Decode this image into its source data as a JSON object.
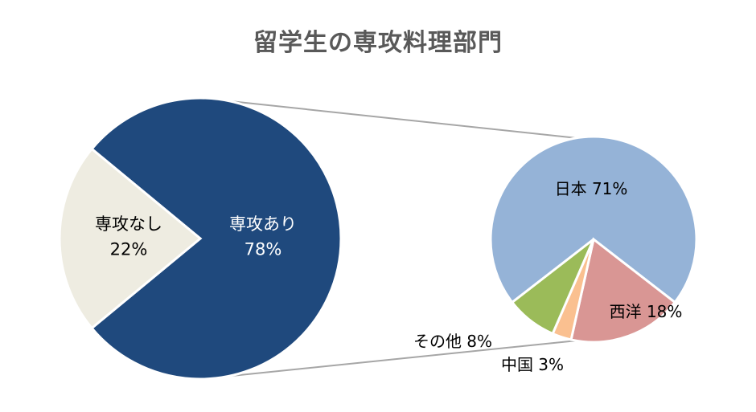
{
  "chart_data": {
    "type": "pie",
    "title": "留学生の専攻料理部門",
    "main_pie": {
      "slices": [
        {
          "label": "専攻あり",
          "value": 78,
          "value_label": "78%",
          "color": "#1f497d"
        },
        {
          "label": "専攻なし",
          "value": 22,
          "value_label": "22%",
          "color": "#eeece1"
        }
      ]
    },
    "detail_pie": {
      "breakdown_of": "専攻あり",
      "slices": [
        {
          "label": "日本",
          "value": 71,
          "value_label": "71%",
          "color": "#95b3d7"
        },
        {
          "label": "西洋",
          "value": 18,
          "value_label": "18%",
          "color": "#d99694"
        },
        {
          "label": "中国",
          "value": 3,
          "value_label": "3%",
          "color": "#fac090"
        },
        {
          "label": "その他",
          "value": 8,
          "value_label": "8%",
          "color": "#9bbb59"
        }
      ]
    },
    "legend": "none",
    "connector_color": "#a6a6a6"
  }
}
